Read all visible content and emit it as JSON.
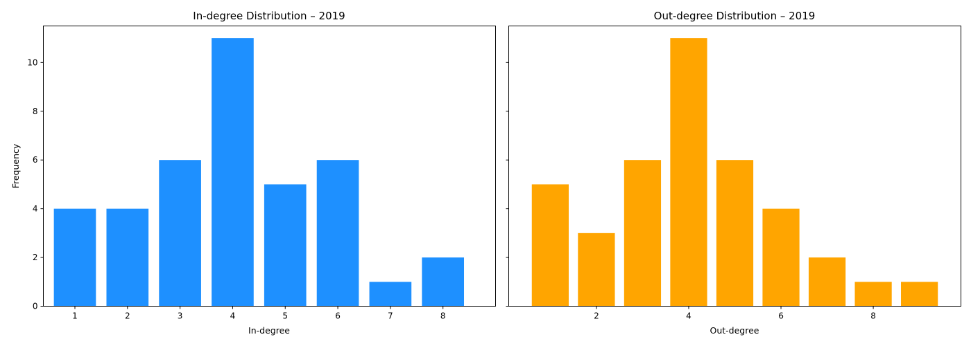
{
  "chart_data": [
    {
      "type": "bar",
      "title": "In-degree Distribution – 2019",
      "xlabel": "In-degree",
      "ylabel": "Frequency",
      "color": "#1e90ff",
      "x": [
        1,
        2,
        3,
        4,
        5,
        6,
        7,
        8
      ],
      "values": [
        4,
        4,
        6,
        11,
        5,
        6,
        1,
        2
      ],
      "xlim": [
        0.4,
        9.0
      ],
      "ylim": [
        0,
        11.5
      ],
      "xticks": [
        1,
        2,
        3,
        4,
        5,
        6,
        7,
        8
      ],
      "yticks": [
        0,
        2,
        4,
        6,
        8,
        10
      ],
      "grid": false
    },
    {
      "type": "bar",
      "title": "Out-degree Distribution – 2019",
      "xlabel": "Out-degree",
      "ylabel": "",
      "color": "#ffa500",
      "x": [
        1,
        2,
        3,
        4,
        5,
        6,
        7,
        8,
        9
      ],
      "values": [
        5,
        3,
        6,
        11,
        6,
        4,
        2,
        1,
        1
      ],
      "xlim": [
        0.1,
        9.9
      ],
      "ylim": [
        0,
        11.5
      ],
      "xticks": [
        2,
        4,
        6,
        8
      ],
      "yticks": [
        0,
        2,
        4,
        6,
        8,
        10
      ],
      "grid": false,
      "shared_y": true
    }
  ]
}
